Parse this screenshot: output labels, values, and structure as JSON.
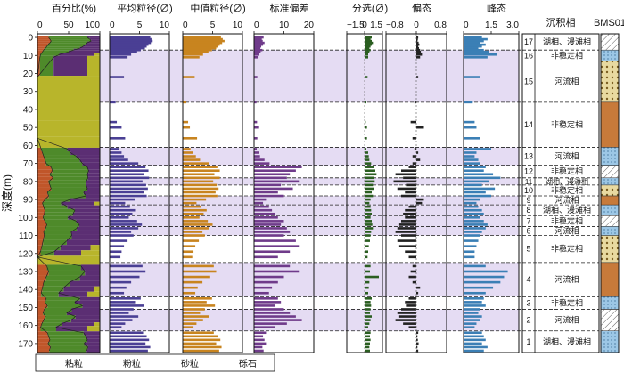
{
  "chart_data": {
    "type": "multi-panel log",
    "depth_axis": {
      "label": "深度(m)",
      "range": [
        -2,
        175
      ],
      "ticks": [
        0,
        10,
        20,
        30,
        40,
        50,
        60,
        70,
        80,
        90,
        100,
        110,
        120,
        130,
        140,
        150,
        160,
        170
      ]
    },
    "panels": [
      {
        "id": "pct",
        "title": "百分比(%)",
        "range": [
          0,
          100
        ],
        "ticks": [
          "0",
          "50",
          "100"
        ]
      },
      {
        "id": "mean",
        "title": "平均粒径(∅)",
        "range": [
          0,
          10
        ],
        "ticks": [
          "0",
          "5",
          "10"
        ],
        "color": "#4a3f94"
      },
      {
        "id": "median",
        "title": "中值粒径(∅)",
        "range": [
          0,
          10
        ],
        "ticks": [
          "0",
          "5",
          "10"
        ],
        "color": "#c8841f"
      },
      {
        "id": "std",
        "title": "标准偏差",
        "range": [
          0,
          20
        ],
        "ticks": [
          "0",
          "10",
          "20"
        ],
        "color": "#6f3b8a"
      },
      {
        "id": "sort",
        "title": "分选(∅)",
        "range": [
          -1.5,
          1.5
        ],
        "ticks": [
          "−1.5",
          "0",
          "1.5"
        ],
        "color": "#2b5e21"
      },
      {
        "id": "skew",
        "title": "偏态",
        "range": [
          -0.8,
          0.8
        ],
        "ticks": [
          "−0.8",
          "0",
          "0.8"
        ],
        "color": "#222222"
      },
      {
        "id": "kurt",
        "title": "峰态",
        "range": [
          0,
          3.0
        ],
        "ticks": [
          "0",
          "1.5",
          "3.0"
        ],
        "color": "#3b7fb5"
      }
    ],
    "facies_title": "沉积相",
    "core_title": "BMS01",
    "units": [
      {
        "n": "17",
        "top": -2,
        "bottom": 7,
        "facies": "湖相、漫滩相",
        "band": false
      },
      {
        "n": "16",
        "top": 7,
        "bottom": 13,
        "facies": "非稳定相",
        "band": true
      },
      {
        "n": "15",
        "top": 13,
        "bottom": 36,
        "facies": "河流相",
        "band": true
      },
      {
        "n": "14",
        "top": 36,
        "bottom": 61,
        "facies": "非稳定相",
        "band": false
      },
      {
        "n": "13",
        "top": 61,
        "bottom": 71,
        "facies": "河流相",
        "band": true
      },
      {
        "n": "12",
        "top": 71,
        "bottom": 78,
        "facies": "非稳定相",
        "band": false
      },
      {
        "n": "11",
        "top": 78,
        "bottom": 82,
        "facies": "湖相、漫滩相",
        "band": true
      },
      {
        "n": "10",
        "top": 82,
        "bottom": 88,
        "facies": "非稳定相",
        "band": false
      },
      {
        "n": "9",
        "top": 88,
        "bottom": 93,
        "facies": "河流相",
        "band": true
      },
      {
        "n": "8",
        "top": 93,
        "bottom": 99,
        "facies": "湖相、漫滩相",
        "band": true
      },
      {
        "n": "7",
        "top": 99,
        "bottom": 105,
        "facies": "非稳定相",
        "band": true
      },
      {
        "n": "6",
        "top": 105,
        "bottom": 110,
        "facies": "河流相",
        "band": true
      },
      {
        "n": "5",
        "top": 110,
        "bottom": 125,
        "facies": "非稳定相",
        "band": false
      },
      {
        "n": "4",
        "top": 125,
        "bottom": 144,
        "facies": "河流相",
        "band": true
      },
      {
        "n": "3",
        "top": 144,
        "bottom": 151,
        "facies": "非稳定相",
        "band": false
      },
      {
        "n": "2",
        "top": 151,
        "bottom": 163,
        "facies": "河流相",
        "band": true
      },
      {
        "n": "1",
        "top": 163,
        "bottom": 175,
        "facies": "湖相、漫滩相",
        "band": false
      }
    ],
    "legend": [
      {
        "label": "粘粒",
        "color": "#c0562a"
      },
      {
        "label": "粉粒",
        "color": "#4e8a2a"
      },
      {
        "label": "砂粒",
        "color": "#5b2e73"
      },
      {
        "label": "砾石",
        "color": "#b8b52b"
      }
    ],
    "samples": [
      {
        "d": 0,
        "mean": 6.8,
        "median": 6.4,
        "std": 3.2,
        "sort": 0.6,
        "skew": 0.05,
        "kurt": 1.0,
        "clay": 18,
        "silt": 62,
        "sand": 20
      },
      {
        "d": 1,
        "mean": 7.0,
        "median": 6.7,
        "std": 2.6,
        "sort": 0.5,
        "skew": 0.04,
        "kurt": 1.3,
        "clay": 20,
        "silt": 64,
        "sand": 16
      },
      {
        "d": 2,
        "mean": 7.2,
        "median": 7.0,
        "std": 2.9,
        "sort": 0.6,
        "skew": 0.03,
        "kurt": 1.1,
        "clay": 22,
        "silt": 64,
        "sand": 14
      },
      {
        "d": 3,
        "mean": 6.9,
        "median": 6.6,
        "std": 3.5,
        "sort": 0.7,
        "skew": 0.06,
        "kurt": 0.9,
        "clay": 20,
        "silt": 60,
        "sand": 20
      },
      {
        "d": 4,
        "mean": 6.5,
        "median": 6.2,
        "std": 3.0,
        "sort": 0.6,
        "skew": 0.08,
        "kurt": 1.2,
        "clay": 17,
        "silt": 60,
        "sand": 23
      },
      {
        "d": 5,
        "mean": 6.2,
        "median": 5.9,
        "std": 2.4,
        "sort": 0.5,
        "skew": 0.05,
        "kurt": 1.0,
        "clay": 15,
        "silt": 58,
        "sand": 27
      },
      {
        "d": 6,
        "mean": 5.9,
        "median": 5.6,
        "std": 2.1,
        "sort": 0.4,
        "skew": 0.07,
        "kurt": 0.8,
        "clay": 13,
        "silt": 55,
        "sand": 32
      },
      {
        "d": 7,
        "mean": 5.2,
        "median": 4.9,
        "std": 2.8,
        "sort": 0.5,
        "skew": 0.1,
        "kurt": 1.1,
        "clay": 10,
        "silt": 48,
        "sand": 42
      },
      {
        "d": 8,
        "mean": 4.6,
        "median": 4.3,
        "std": 2.2,
        "sort": 0.4,
        "skew": 0.12,
        "kurt": 1.4,
        "clay": 8,
        "silt": 42,
        "sand": 50
      },
      {
        "d": 9.5,
        "mean": 3.6,
        "median": 3.4,
        "std": 1.6,
        "sort": 0.3,
        "skew": 0.15,
        "kurt": 1.8,
        "clay": 5,
        "silt": 30,
        "sand": 55,
        "gravel": 10
      },
      {
        "d": 11,
        "mean": 3.0,
        "median": 2.8,
        "std": 1.2,
        "sort": 0.3,
        "skew": 0.1,
        "kurt": 1.3,
        "clay": 4,
        "silt": 22,
        "sand": 54,
        "gravel": 20
      },
      {
        "d": 22,
        "mean": 2.4,
        "median": 2.0,
        "std": 1.1,
        "sort": 0.25,
        "skew": 0.05,
        "kurt": 0.9,
        "gravel": 100
      },
      {
        "d": 36,
        "mean": 1.0,
        "median": 0.6,
        "std": 0.8,
        "sort": 0.15,
        "skew": -0.05,
        "kurt": 0.5,
        "gravel": 100
      },
      {
        "d": 47,
        "mean": 1.2,
        "median": 0.9,
        "std": 1.0,
        "sort": 0.1,
        "skew": -0.15,
        "kurt": 0.6,
        "gravel": 100
      },
      {
        "d": 50,
        "mean": 2.0,
        "median": 1.2,
        "std": 1.4,
        "sort": 0.2,
        "skew": 0.2,
        "kurt": 0.7,
        "gravel": 100
      },
      {
        "d": 56,
        "mean": 2.6,
        "median": 2.4,
        "std": 1.1,
        "sort": 0.2,
        "skew": -0.1,
        "kurt": 0.9,
        "gravel": 100
      },
      {
        "d": 62,
        "mean": 1.5,
        "median": 1.3,
        "std": 0.9,
        "sort": 0.15,
        "skew": -0.05,
        "kurt": 1.5,
        "clay": 6,
        "silt": 42,
        "sand": 52
      },
      {
        "d": 64,
        "mean": 2.0,
        "median": 1.7,
        "std": 1.6,
        "sort": 0.3,
        "skew": 0.05,
        "kurt": 0.7,
        "clay": 8,
        "silt": 45,
        "sand": 47
      },
      {
        "d": 66,
        "mean": 2.4,
        "median": 2.2,
        "std": 2.0,
        "sort": 0.35,
        "skew": -0.1,
        "kurt": 0.6,
        "clay": 10,
        "silt": 52,
        "sand": 38
      },
      {
        "d": 68,
        "mean": 3.1,
        "median": 2.9,
        "std": 3.5,
        "sort": 0.4,
        "skew": 0.1,
        "kurt": 0.8,
        "clay": 12,
        "silt": 56,
        "sand": 32
      },
      {
        "d": 70,
        "mean": 4.8,
        "median": 4.4,
        "std": 5.2,
        "sort": 0.55,
        "skew": -0.1,
        "kurt": 0.9,
        "clay": 14,
        "silt": 58,
        "sand": 28
      },
      {
        "d": 72,
        "mean": 6.0,
        "median": 5.8,
        "std": 16.0,
        "sort": 0.75,
        "skew": -0.2,
        "kurt": 1.2,
        "clay": 22,
        "silt": 58,
        "sand": 20
      },
      {
        "d": 74,
        "mean": 6.5,
        "median": 6.2,
        "std": 14.0,
        "sort": 0.9,
        "skew": -0.4,
        "kurt": 1.1,
        "clay": 24,
        "silt": 58,
        "sand": 18
      },
      {
        "d": 76,
        "mean": 5.8,
        "median": 5.3,
        "std": 12.0,
        "sort": 1.0,
        "skew": -0.55,
        "kurt": 1.6,
        "clay": 20,
        "silt": 60,
        "sand": 20
      },
      {
        "d": 78,
        "mean": 6.6,
        "median": 6.2,
        "std": 11.0,
        "sort": 0.8,
        "skew": -0.35,
        "kurt": 2.0,
        "clay": 25,
        "silt": 56,
        "sand": 19
      },
      {
        "d": 80,
        "mean": 5.5,
        "median": 5.1,
        "std": 15.0,
        "sort": 0.85,
        "skew": -0.6,
        "kurt": 1.4,
        "clay": 18,
        "silt": 60,
        "sand": 22
      },
      {
        "d": 82,
        "mean": 6.1,
        "median": 5.7,
        "std": 9.0,
        "sort": 0.7,
        "skew": -0.25,
        "kurt": 1.0,
        "clay": 20,
        "silt": 58,
        "sand": 22
      },
      {
        "d": 84,
        "mean": 6.4,
        "median": 6.0,
        "std": 13.0,
        "sort": 0.8,
        "skew": -0.5,
        "kurt": 1.7,
        "clay": 22,
        "silt": 58,
        "sand": 20
      },
      {
        "d": 86,
        "mean": 5.8,
        "median": 5.5,
        "std": 8.0,
        "sort": 0.6,
        "skew": -0.3,
        "kurt": 1.2,
        "clay": 16,
        "silt": 58,
        "sand": 26
      },
      {
        "d": 88,
        "mean": 6.2,
        "median": 5.8,
        "std": 10.0,
        "sort": 0.7,
        "skew": -0.4,
        "kurt": 1.5,
        "clay": 18,
        "silt": 60,
        "sand": 22
      },
      {
        "d": 90,
        "mean": 4.2,
        "median": 3.9,
        "std": 4.0,
        "sort": 0.5,
        "skew": 0.2,
        "kurt": 0.9,
        "clay": 12,
        "silt": 40,
        "sand": 48
      },
      {
        "d": 92,
        "mean": 2.6,
        "median": 2.3,
        "std": 3.0,
        "sort": 0.4,
        "skew": 0.15,
        "kurt": 0.7,
        "clay": 8,
        "silt": 30,
        "sand": 52,
        "gravel": 10
      },
      {
        "d": 94,
        "mean": 3.4,
        "median": 3.0,
        "std": 5.0,
        "sort": 0.5,
        "skew": -0.2,
        "kurt": 0.8,
        "clay": 10,
        "silt": 38,
        "sand": 52
      },
      {
        "d": 96,
        "mean": 4.4,
        "median": 4.0,
        "std": 6.0,
        "sort": 0.55,
        "skew": -0.3,
        "kurt": 1.0,
        "clay": 12,
        "silt": 48,
        "sand": 40
      },
      {
        "d": 98,
        "mean": 3.8,
        "median": 3.5,
        "std": 7.0,
        "sort": 0.6,
        "skew": -0.35,
        "kurt": 1.1,
        "clay": 11,
        "silt": 46,
        "sand": 43
      },
      {
        "d": 100,
        "mean": 3.2,
        "median": 2.8,
        "std": 8.0,
        "sort": 0.5,
        "skew": -0.3,
        "kurt": 0.9,
        "clay": 9,
        "silt": 40,
        "sand": 51
      },
      {
        "d": 102,
        "mean": 4.6,
        "median": 4.2,
        "std": 10.0,
        "sort": 0.6,
        "skew": -0.4,
        "kurt": 1.1,
        "clay": 12,
        "silt": 50,
        "sand": 38
      },
      {
        "d": 104,
        "mean": 5.4,
        "median": 5.0,
        "std": 9.0,
        "sort": 0.65,
        "skew": -0.45,
        "kurt": 1.3,
        "clay": 15,
        "silt": 52,
        "sand": 33
      },
      {
        "d": 106,
        "mean": 4.8,
        "median": 4.4,
        "std": 11.0,
        "sort": 0.7,
        "skew": -0.5,
        "kurt": 1.2,
        "clay": 13,
        "silt": 50,
        "sand": 37
      },
      {
        "d": 108,
        "mean": 3.6,
        "median": 3.3,
        "std": 12.0,
        "sort": 0.55,
        "skew": -0.55,
        "kurt": 1.0,
        "clay": 10,
        "silt": 44,
        "sand": 46
      },
      {
        "d": 110,
        "mean": 4.0,
        "median": 3.7,
        "std": 10.0,
        "sort": 0.5,
        "skew": -0.4,
        "kurt": 0.9,
        "clay": 11,
        "silt": 44,
        "sand": 45
      },
      {
        "d": 113,
        "mean": 3.0,
        "median": 2.7,
        "std": 14.0,
        "sort": 0.45,
        "skew": -0.5,
        "kurt": 0.8,
        "clay": 9,
        "silt": 38,
        "sand": 53
      },
      {
        "d": 116,
        "mean": 2.4,
        "median": 2.1,
        "std": 15.0,
        "sort": 0.35,
        "skew": -0.45,
        "kurt": 0.7,
        "clay": 7,
        "silt": 30,
        "sand": 48,
        "gravel": 15
      },
      {
        "d": 119,
        "mean": 2.0,
        "median": 1.8,
        "std": 12.0,
        "sort": 0.3,
        "skew": -0.3,
        "kurt": 0.6,
        "clay": 5,
        "silt": 22,
        "sand": 43,
        "gravel": 30
      },
      {
        "d": 122,
        "mean": 1.8,
        "median": 1.6,
        "std": 8.0,
        "sort": 0.25,
        "skew": -0.2,
        "kurt": 0.6,
        "gravel": 100
      },
      {
        "d": 127,
        "mean": 5.5,
        "median": 5.2,
        "std": 12.0,
        "sort": 0.5,
        "skew": -0.1,
        "kurt": 1.2,
        "clay": 15,
        "silt": 55,
        "sand": 30
      },
      {
        "d": 130,
        "mean": 6.0,
        "median": 5.6,
        "std": 15.0,
        "sort": 0.45,
        "skew": -0.15,
        "kurt": 2.4,
        "clay": 18,
        "silt": 58,
        "sand": 24
      },
      {
        "d": 133,
        "mean": 5.0,
        "median": 4.6,
        "std": 10.0,
        "sort": 1.2,
        "skew": -0.2,
        "kurt": 2.2,
        "clay": 14,
        "silt": 54,
        "sand": 32
      },
      {
        "d": 136,
        "mean": 3.6,
        "median": 3.3,
        "std": 8.0,
        "sort": 0.4,
        "skew": -0.1,
        "kurt": 2.0,
        "clay": 10,
        "silt": 42,
        "sand": 48
      },
      {
        "d": 139,
        "mean": 2.8,
        "median": 2.5,
        "std": 6.0,
        "sort": 0.35,
        "skew": 0.1,
        "kurt": 1.6,
        "clay": 8,
        "silt": 34,
        "sand": 48,
        "gravel": 10
      },
      {
        "d": 142,
        "mean": 2.4,
        "median": 2.1,
        "std": 5.0,
        "sort": 0.3,
        "skew": 0.05,
        "kurt": 1.2,
        "clay": 6,
        "silt": 28,
        "sand": 46,
        "gravel": 20
      },
      {
        "d": 145,
        "mean": 5.2,
        "median": 4.9,
        "std": 8.0,
        "sort": 0.6,
        "skew": -0.2,
        "kurt": 1.1,
        "clay": 14,
        "silt": 54,
        "sand": 32
      },
      {
        "d": 147,
        "mean": 4.4,
        "median": 4.0,
        "std": 9.0,
        "sort": 0.5,
        "skew": -0.3,
        "kurt": 1.0,
        "clay": 12,
        "silt": 48,
        "sand": 40
      },
      {
        "d": 149,
        "mean": 5.8,
        "median": 5.4,
        "std": 7.0,
        "sort": 0.55,
        "skew": -0.25,
        "kurt": 1.2,
        "clay": 16,
        "silt": 56,
        "sand": 28
      },
      {
        "d": 151,
        "mean": 4.0,
        "median": 3.7,
        "std": 10.0,
        "sort": 0.5,
        "skew": -0.4,
        "kurt": 0.9,
        "clay": 11,
        "silt": 44,
        "sand": 45
      },
      {
        "d": 153,
        "mean": 3.2,
        "median": 2.9,
        "std": 12.0,
        "sort": 0.45,
        "skew": -0.5,
        "kurt": 0.8,
        "clay": 9,
        "silt": 38,
        "sand": 53
      },
      {
        "d": 155,
        "mean": 4.8,
        "median": 4.4,
        "std": 14.0,
        "sort": 0.6,
        "skew": -0.45,
        "kurt": 1.0,
        "clay": 13,
        "silt": 48,
        "sand": 39
      },
      {
        "d": 157,
        "mean": 3.8,
        "median": 3.4,
        "std": 16.0,
        "sort": 0.5,
        "skew": -0.55,
        "kurt": 0.9,
        "clay": 10,
        "silt": 44,
        "sand": 46
      },
      {
        "d": 159,
        "mean": 2.6,
        "median": 2.3,
        "std": 11.0,
        "sort": 0.4,
        "skew": -0.35,
        "kurt": 0.7,
        "clay": 7,
        "silt": 32,
        "sand": 51,
        "gravel": 10
      },
      {
        "d": 161,
        "mean": 2.0,
        "median": 1.8,
        "std": 7.0,
        "sort": 0.3,
        "skew": -0.2,
        "kurt": 0.6,
        "clay": 5,
        "silt": 25,
        "sand": 50,
        "gravel": 20
      },
      {
        "d": 164,
        "mean": 5.6,
        "median": 5.2,
        "std": 4.0,
        "sort": 0.5,
        "skew": 0.05,
        "kurt": 1.0,
        "clay": 16,
        "silt": 58,
        "sand": 26
      },
      {
        "d": 166,
        "mean": 6.2,
        "median": 5.9,
        "std": 3.0,
        "sort": 0.45,
        "skew": 0.03,
        "kurt": 1.1,
        "clay": 18,
        "silt": 60,
        "sand": 22
      },
      {
        "d": 168,
        "mean": 6.6,
        "median": 6.3,
        "std": 3.5,
        "sort": 0.5,
        "skew": 0.04,
        "kurt": 1.2,
        "clay": 20,
        "silt": 60,
        "sand": 20
      },
      {
        "d": 170,
        "mean": 6.0,
        "median": 5.6,
        "std": 4.0,
        "sort": 0.45,
        "skew": 0.06,
        "kurt": 1.0,
        "clay": 17,
        "silt": 58,
        "sand": 25
      },
      {
        "d": 172,
        "mean": 6.8,
        "median": 6.5,
        "std": 2.8,
        "sort": 0.4,
        "skew": 0.03,
        "kurt": 1.3,
        "clay": 21,
        "silt": 60,
        "sand": 19
      },
      {
        "d": 174,
        "mean": 6.4,
        "median": 6.1,
        "std": 3.2,
        "sort": 0.45,
        "skew": 0.05,
        "kurt": 1.1,
        "clay": 19,
        "silt": 60,
        "sand": 21
      }
    ]
  }
}
